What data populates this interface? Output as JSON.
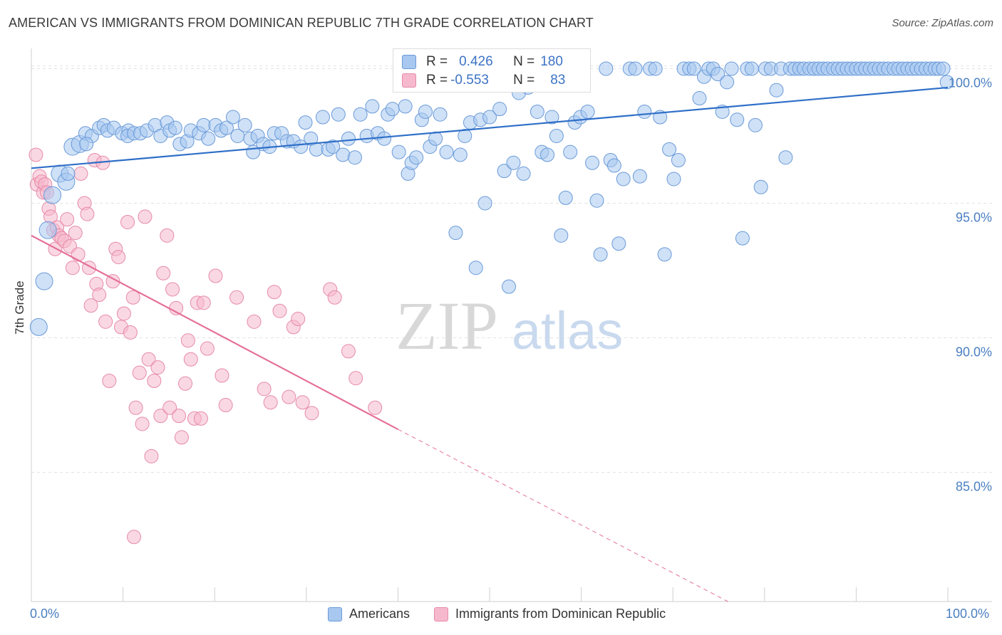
{
  "title": "AMERICAN VS IMMIGRANTS FROM DOMINICAN REPUBLIC 7TH GRADE CORRELATION CHART",
  "source": "Source: ZipAtlas.com",
  "watermark": {
    "zip": "ZIP",
    "atlas": "atlas"
  },
  "colors": {
    "americans_fill": "#a8c8f0",
    "americans_stroke": "#6a9ad8",
    "americans_line": "#2f6fc8",
    "dominican_fill": "#f6b8cc",
    "dominican_stroke": "#e68aa8",
    "dominican_line": "#e5709a",
    "tick_label": "#4a7fc1",
    "grid": "#e2e2e2"
  },
  "stats": [
    {
      "r_label": "R =",
      "r_value": "0.426",
      "n_label": "N =",
      "n_value": "180"
    },
    {
      "r_label": "R =",
      "r_value": "-0.553",
      "n_label": "N =",
      "n_value": "83"
    }
  ],
  "legend": [
    "Americans",
    "Immigrants from Dominican Republic"
  ],
  "axis": {
    "x_start": "0.0%",
    "x_end": "100.0%",
    "ylabel": "7th Grade"
  },
  "chart_data": {
    "type": "scatter",
    "xlabel": "",
    "ylabel": "7th Grade",
    "xlim": [
      0,
      100
    ],
    "ylim": [
      80.2,
      100.7
    ],
    "yticks": [
      {
        "value": 100,
        "label": "100.0%"
      },
      {
        "value": 95,
        "label": "95.0%"
      },
      {
        "value": 90,
        "label": "90.0%"
      },
      {
        "value": 85,
        "label": "85.0%"
      }
    ],
    "grid": true,
    "legend_position": "bottom",
    "series": [
      {
        "name": "Americans",
        "trend": {
          "x": [
            0,
            100
          ],
          "y": [
            96.3,
            99.3
          ]
        },
        "points": [
          [
            0.8,
            90.4
          ],
          [
            1.4,
            92.1
          ],
          [
            1.8,
            94.0
          ],
          [
            2.3,
            95.3
          ],
          [
            3.1,
            96.1
          ],
          [
            3.8,
            95.8
          ],
          [
            4.5,
            97.1
          ],
          [
            5.3,
            97.2
          ],
          [
            5.9,
            97.6
          ],
          [
            6.6,
            97.5
          ],
          [
            7.4,
            97.8
          ],
          [
            7.9,
            97.9
          ],
          [
            8.3,
            97.7
          ],
          [
            9.0,
            97.8
          ],
          [
            9.9,
            97.6
          ],
          [
            10.6,
            97.7
          ],
          [
            10.5,
            97.5
          ],
          [
            11.2,
            97.6
          ],
          [
            11.9,
            97.6
          ],
          [
            12.6,
            97.7
          ],
          [
            13.5,
            97.9
          ],
          [
            14.1,
            97.5
          ],
          [
            14.8,
            98.0
          ],
          [
            15.1,
            97.7
          ],
          [
            15.7,
            97.8
          ],
          [
            16.2,
            97.2
          ],
          [
            17.0,
            97.3
          ],
          [
            17.4,
            97.7
          ],
          [
            18.3,
            97.6
          ],
          [
            18.8,
            97.9
          ],
          [
            19.3,
            97.4
          ],
          [
            20.1,
            97.9
          ],
          [
            20.7,
            97.7
          ],
          [
            21.3,
            97.8
          ],
          [
            22.0,
            98.2
          ],
          [
            22.5,
            97.5
          ],
          [
            23.3,
            97.9
          ],
          [
            23.9,
            97.4
          ],
          [
            24.2,
            96.9
          ],
          [
            24.7,
            97.5
          ],
          [
            25.3,
            97.2
          ],
          [
            26.0,
            97.1
          ],
          [
            26.5,
            97.6
          ],
          [
            27.3,
            97.6
          ],
          [
            27.9,
            97.3
          ],
          [
            28.6,
            97.3
          ],
          [
            29.4,
            97.1
          ],
          [
            29.9,
            98.0
          ],
          [
            30.5,
            97.4
          ],
          [
            31.1,
            97.0
          ],
          [
            31.8,
            98.2
          ],
          [
            32.4,
            97.0
          ],
          [
            32.9,
            97.1
          ],
          [
            33.5,
            98.3
          ],
          [
            34.0,
            96.8
          ],
          [
            34.6,
            97.4
          ],
          [
            35.3,
            96.7
          ],
          [
            35.9,
            98.3
          ],
          [
            36.6,
            97.5
          ],
          [
            37.2,
            98.6
          ],
          [
            37.8,
            97.6
          ],
          [
            38.5,
            97.4
          ],
          [
            38.9,
            98.3
          ],
          [
            39.4,
            98.5
          ],
          [
            40.1,
            96.9
          ],
          [
            40.8,
            98.6
          ],
          [
            41.1,
            96.1
          ],
          [
            41.5,
            96.5
          ],
          [
            42.0,
            96.7
          ],
          [
            42.6,
            98.1
          ],
          [
            43.0,
            98.4
          ],
          [
            43.5,
            97.1
          ],
          [
            44.1,
            97.4
          ],
          [
            44.6,
            98.3
          ],
          [
            45.3,
            96.9
          ],
          [
            46.3,
            93.9
          ],
          [
            46.8,
            96.8
          ],
          [
            47.3,
            97.5
          ],
          [
            47.9,
            98.0
          ],
          [
            48.5,
            92.6
          ],
          [
            49.0,
            98.1
          ],
          [
            49.5,
            95.0
          ],
          [
            50.0,
            98.2
          ],
          [
            51.1,
            98.5
          ],
          [
            51.6,
            96.2
          ],
          [
            52.1,
            91.9
          ],
          [
            52.6,
            96.5
          ],
          [
            53.2,
            99.1
          ],
          [
            53.7,
            96.1
          ],
          [
            54.2,
            99.3
          ],
          [
            55.2,
            98.4
          ],
          [
            55.7,
            96.9
          ],
          [
            56.3,
            96.8
          ],
          [
            56.8,
            98.2
          ],
          [
            57.3,
            97.5
          ],
          [
            57.8,
            93.8
          ],
          [
            58.3,
            95.2
          ],
          [
            58.8,
            96.9
          ],
          [
            59.3,
            98.0
          ],
          [
            59.9,
            98.2
          ],
          [
            60.2,
            100.0
          ],
          [
            60.7,
            98.4
          ],
          [
            61.2,
            96.5
          ],
          [
            61.7,
            95.1
          ],
          [
            62.1,
            93.1
          ],
          [
            62.7,
            100.0
          ],
          [
            63.2,
            96.6
          ],
          [
            63.6,
            96.4
          ],
          [
            64.1,
            93.5
          ],
          [
            64.6,
            95.9
          ],
          [
            65.3,
            100.0
          ],
          [
            65.9,
            100.0
          ],
          [
            66.4,
            96.0
          ],
          [
            66.9,
            98.4
          ],
          [
            67.5,
            100.0
          ],
          [
            68.1,
            100.0
          ],
          [
            68.6,
            98.2
          ],
          [
            69.1,
            93.1
          ],
          [
            69.6,
            97.0
          ],
          [
            70.1,
            95.9
          ],
          [
            70.6,
            96.6
          ],
          [
            71.2,
            100.0
          ],
          [
            71.8,
            100.0
          ],
          [
            72.3,
            100.0
          ],
          [
            72.9,
            98.9
          ],
          [
            73.4,
            99.7
          ],
          [
            73.9,
            100.0
          ],
          [
            74.4,
            100.0
          ],
          [
            74.9,
            99.8
          ],
          [
            75.4,
            98.4
          ],
          [
            75.9,
            99.5
          ],
          [
            76.4,
            100.0
          ],
          [
            77.0,
            98.1
          ],
          [
            77.6,
            93.7
          ],
          [
            78.1,
            100.0
          ],
          [
            78.6,
            100.0
          ],
          [
            79.0,
            97.9
          ],
          [
            79.6,
            95.6
          ],
          [
            80.1,
            100.0
          ],
          [
            80.7,
            100.0
          ],
          [
            81.3,
            99.2
          ],
          [
            81.8,
            100.0
          ],
          [
            82.3,
            96.7
          ],
          [
            82.8,
            100.0
          ],
          [
            83.3,
            100.0
          ],
          [
            83.8,
            100.0
          ],
          [
            84.3,
            100.0
          ],
          [
            84.9,
            100.0
          ],
          [
            85.4,
            100.0
          ],
          [
            85.9,
            100.0
          ],
          [
            86.4,
            100.0
          ],
          [
            86.9,
            100.0
          ],
          [
            87.5,
            100.0
          ],
          [
            88.0,
            100.0
          ],
          [
            88.5,
            100.0
          ],
          [
            89.0,
            100.0
          ],
          [
            89.5,
            100.0
          ],
          [
            90.0,
            100.0
          ],
          [
            90.5,
            100.0
          ],
          [
            91.0,
            100.0
          ],
          [
            91.5,
            100.0
          ],
          [
            92.0,
            100.0
          ],
          [
            92.5,
            100.0
          ],
          [
            93.0,
            100.0
          ],
          [
            93.5,
            100.0
          ],
          [
            94.1,
            100.0
          ],
          [
            94.6,
            100.0
          ],
          [
            95.1,
            100.0
          ],
          [
            95.6,
            100.0
          ],
          [
            96.1,
            100.0
          ],
          [
            96.6,
            100.0
          ],
          [
            97.1,
            100.0
          ],
          [
            97.6,
            100.0
          ],
          [
            98.1,
            100.0
          ],
          [
            98.6,
            100.0
          ],
          [
            99.0,
            100.0
          ],
          [
            99.5,
            100.0
          ],
          [
            99.9,
            99.5
          ],
          [
            4.0,
            96.1
          ],
          [
            6.0,
            97.2
          ]
        ]
      },
      {
        "name": "Immigrants from Dominican Republic",
        "trend": {
          "x": [
            0,
            40.0
          ],
          "y": [
            93.8,
            86.6
          ],
          "dashed_extension": {
            "x": [
              40.0,
              76.0
            ],
            "y": [
              86.6,
              80.2
            ]
          }
        },
        "points": [
          [
            0.5,
            96.8
          ],
          [
            0.6,
            95.7
          ],
          [
            0.9,
            96.0
          ],
          [
            1.1,
            95.8
          ],
          [
            1.3,
            95.4
          ],
          [
            1.5,
            95.7
          ],
          [
            1.7,
            95.4
          ],
          [
            1.9,
            94.8
          ],
          [
            2.1,
            94.5
          ],
          [
            2.4,
            94.0
          ],
          [
            2.6,
            93.3
          ],
          [
            2.8,
            94.1
          ],
          [
            3.0,
            93.8
          ],
          [
            3.3,
            93.7
          ],
          [
            3.6,
            93.6
          ],
          [
            3.9,
            94.4
          ],
          [
            4.2,
            93.4
          ],
          [
            4.5,
            92.6
          ],
          [
            4.8,
            93.9
          ],
          [
            5.1,
            93.1
          ],
          [
            5.4,
            96.1
          ],
          [
            5.8,
            95.0
          ],
          [
            6.1,
            94.6
          ],
          [
            6.3,
            92.6
          ],
          [
            6.5,
            91.2
          ],
          [
            6.9,
            96.6
          ],
          [
            7.1,
            92.0
          ],
          [
            7.4,
            91.6
          ],
          [
            7.8,
            96.5
          ],
          [
            8.1,
            90.6
          ],
          [
            8.5,
            88.4
          ],
          [
            8.9,
            92.1
          ],
          [
            9.2,
            93.3
          ],
          [
            9.5,
            93.0
          ],
          [
            9.8,
            90.4
          ],
          [
            10.1,
            90.9
          ],
          [
            10.5,
            94.3
          ],
          [
            10.8,
            90.2
          ],
          [
            11.1,
            91.5
          ],
          [
            11.4,
            87.4
          ],
          [
            11.8,
            88.7
          ],
          [
            12.1,
            86.8
          ],
          [
            12.4,
            94.5
          ],
          [
            12.8,
            89.2
          ],
          [
            13.1,
            85.6
          ],
          [
            13.4,
            88.4
          ],
          [
            13.8,
            88.9
          ],
          [
            14.1,
            87.1
          ],
          [
            14.4,
            92.4
          ],
          [
            14.8,
            93.8
          ],
          [
            15.1,
            87.4
          ],
          [
            15.4,
            91.8
          ],
          [
            15.8,
            91.1
          ],
          [
            16.1,
            87.1
          ],
          [
            16.4,
            86.3
          ],
          [
            16.8,
            88.3
          ],
          [
            17.1,
            89.9
          ],
          [
            17.4,
            89.2
          ],
          [
            17.8,
            87.0
          ],
          [
            18.1,
            91.3
          ],
          [
            18.5,
            87.0
          ],
          [
            18.8,
            91.3
          ],
          [
            19.2,
            89.6
          ],
          [
            20.1,
            92.3
          ],
          [
            20.8,
            88.6
          ],
          [
            21.2,
            87.5
          ],
          [
            22.4,
            91.5
          ],
          [
            24.3,
            90.6
          ],
          [
            25.4,
            88.1
          ],
          [
            26.1,
            87.6
          ],
          [
            26.5,
            91.7
          ],
          [
            27.1,
            91.0
          ],
          [
            28.1,
            87.8
          ],
          [
            28.6,
            90.4
          ],
          [
            29.1,
            90.7
          ],
          [
            29.6,
            87.6
          ],
          [
            30.6,
            87.2
          ],
          [
            32.6,
            91.8
          ],
          [
            33.1,
            91.5
          ],
          [
            34.6,
            89.5
          ],
          [
            35.4,
            88.5
          ],
          [
            37.5,
            87.4
          ],
          [
            11.2,
            82.6
          ]
        ]
      }
    ]
  }
}
